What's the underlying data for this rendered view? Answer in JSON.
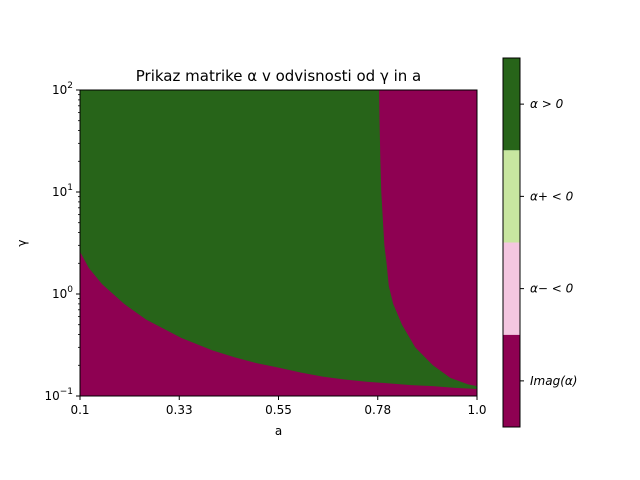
{
  "chart_data": {
    "type": "heatmap",
    "title": "Prikaz matrike α v odvisnosti od γ in a",
    "xlabel": "a",
    "ylabel": "γ",
    "x_ticks": [
      "0.1",
      "0.33",
      "0.55",
      "0.78",
      "1.0"
    ],
    "x_tick_values": [
      0.1,
      0.325,
      0.55,
      0.775,
      1.0
    ],
    "xlim": [
      0.1,
      1.0
    ],
    "y_scale": "log",
    "ylim": [
      0.1,
      100
    ],
    "y_ticks": [
      {
        "base": "10",
        "exp": "−1",
        "value": 0.1
      },
      {
        "base": "10",
        "exp": "0",
        "value": 1
      },
      {
        "base": "10",
        "exp": "1",
        "value": 10
      },
      {
        "base": "10",
        "exp": "2",
        "value": 100
      }
    ],
    "colorbar": {
      "categories": [
        {
          "label": "Imag(α)",
          "color": "#8e0152"
        },
        {
          "label": "α− < 0",
          "color": "#f4c6e0"
        },
        {
          "label": "α+ < 0",
          "color": "#c8e6a0"
        },
        {
          "label": "α > 0",
          "color": "#276419"
        }
      ]
    },
    "regions": {
      "lower_boundary": [
        {
          "a": 0.1,
          "gamma": 2.6
        },
        {
          "a": 0.12,
          "gamma": 1.8
        },
        {
          "a": 0.15,
          "gamma": 1.25
        },
        {
          "a": 0.2,
          "gamma": 0.8
        },
        {
          "a": 0.25,
          "gamma": 0.56
        },
        {
          "a": 0.33,
          "gamma": 0.37
        },
        {
          "a": 0.4,
          "gamma": 0.28
        },
        {
          "a": 0.45,
          "gamma": 0.24
        },
        {
          "a": 0.5,
          "gamma": 0.21
        },
        {
          "a": 0.55,
          "gamma": 0.19
        },
        {
          "a": 0.6,
          "gamma": 0.17
        },
        {
          "a": 0.65,
          "gamma": 0.155
        },
        {
          "a": 0.7,
          "gamma": 0.145
        },
        {
          "a": 0.75,
          "gamma": 0.138
        },
        {
          "a": 0.8,
          "gamma": 0.133
        },
        {
          "a": 0.85,
          "gamma": 0.128
        },
        {
          "a": 0.9,
          "gamma": 0.125
        },
        {
          "a": 0.95,
          "gamma": 0.12
        },
        {
          "a": 1.0,
          "gamma": 0.117
        }
      ],
      "right_boundary": [
        {
          "gamma": 100,
          "a": 0.778
        },
        {
          "gamma": 50,
          "a": 0.779
        },
        {
          "gamma": 20,
          "a": 0.781
        },
        {
          "gamma": 10,
          "a": 0.783
        },
        {
          "gamma": 5,
          "a": 0.787
        },
        {
          "gamma": 3,
          "a": 0.79
        },
        {
          "gamma": 2,
          "a": 0.795
        },
        {
          "gamma": 1.2,
          "a": 0.8
        },
        {
          "gamma": 0.8,
          "a": 0.81
        },
        {
          "gamma": 0.5,
          "a": 0.83
        },
        {
          "gamma": 0.3,
          "a": 0.86
        },
        {
          "gamma": 0.2,
          "a": 0.9
        },
        {
          "gamma": 0.15,
          "a": 0.94
        },
        {
          "gamma": 0.13,
          "a": 0.98
        },
        {
          "gamma": 0.125,
          "a": 1.0
        }
      ]
    }
  }
}
